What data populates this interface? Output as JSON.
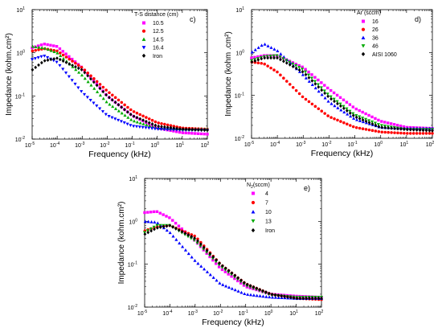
{
  "chart_data": [
    {
      "type": "scatter",
      "panel_label": "c)",
      "xlabel": "Frequency (kHz)",
      "ylabel": "Impedance (kohm.cm²)",
      "x_scale": "log",
      "y_scale": "log",
      "xlim": [
        1e-05,
        100
      ],
      "ylim": [
        0.01,
        10
      ],
      "x_ticks": [
        {
          "base": "10",
          "exp": "-5"
        },
        {
          "base": "10",
          "exp": "-4"
        },
        {
          "base": "10",
          "exp": "-3"
        },
        {
          "base": "10",
          "exp": "-2"
        },
        {
          "base": "10",
          "exp": "-1"
        },
        {
          "base": "10",
          "exp": "0"
        },
        {
          "base": "10",
          "exp": "1"
        },
        {
          "base": "10",
          "exp": "2"
        }
      ],
      "y_ticks": [
        {
          "base": "10",
          "exp": "-2"
        },
        {
          "base": "10",
          "exp": "-1"
        },
        {
          "base": "10",
          "exp": "0"
        },
        {
          "base": "10",
          "exp": "1"
        }
      ],
      "legend_title": "T-S distance (cm)",
      "legend_position": "top-right",
      "series": [
        {
          "name": "10.5",
          "color": "#ff00ff",
          "marker": "square",
          "points": [
            [
              1e-05,
              1.3
            ],
            [
              3e-05,
              1.6
            ],
            [
              0.0001,
              1.4
            ],
            [
              0.001,
              0.45
            ],
            [
              0.01,
              0.1
            ],
            [
              0.1,
              0.035
            ],
            [
              1,
              0.018
            ],
            [
              10,
              0.014
            ],
            [
              100,
              0.013
            ]
          ]
        },
        {
          "name": "12.5",
          "color": "#ff0000",
          "marker": "circle",
          "points": [
            [
              1e-05,
              1.1
            ],
            [
              3e-05,
              1.25
            ],
            [
              0.0001,
              1.1
            ],
            [
              0.001,
              0.45
            ],
            [
              0.01,
              0.13
            ],
            [
              0.1,
              0.045
            ],
            [
              1,
              0.024
            ],
            [
              10,
              0.018
            ],
            [
              100,
              0.017
            ]
          ]
        },
        {
          "name": "14.5",
          "color": "#00aa00",
          "marker": "triangle-up",
          "points": [
            [
              1e-05,
              1.4
            ],
            [
              3e-05,
              1.3
            ],
            [
              0.0001,
              1.0
            ],
            [
              0.001,
              0.3
            ],
            [
              0.01,
              0.07
            ],
            [
              0.1,
              0.027
            ],
            [
              1,
              0.018
            ],
            [
              10,
              0.017
            ],
            [
              100,
              0.017
            ]
          ]
        },
        {
          "name": "16.4",
          "color": "#0000ff",
          "marker": "triangle-down",
          "points": [
            [
              1e-05,
              0.7
            ],
            [
              3e-05,
              0.85
            ],
            [
              0.0001,
              0.6
            ],
            [
              0.001,
              0.12
            ],
            [
              0.01,
              0.035
            ],
            [
              0.1,
              0.02
            ],
            [
              1,
              0.017
            ],
            [
              10,
              0.016
            ],
            [
              100,
              0.016
            ]
          ]
        },
        {
          "name": "Iron",
          "color": "#000000",
          "marker": "diamond",
          "points": [
            [
              1e-05,
              0.4
            ],
            [
              3e-05,
              0.65
            ],
            [
              0.0001,
              0.75
            ],
            [
              0.001,
              0.4
            ],
            [
              0.01,
              0.1
            ],
            [
              0.1,
              0.035
            ],
            [
              1,
              0.02
            ],
            [
              10,
              0.017
            ],
            [
              100,
              0.016
            ]
          ]
        }
      ]
    },
    {
      "type": "scatter",
      "panel_label": "d)",
      "xlabel": "Frequency (kHz)",
      "ylabel": "Impedance (kohm .cm²)",
      "x_scale": "log",
      "y_scale": "log",
      "xlim": [
        1e-05,
        100
      ],
      "ylim": [
        0.01,
        10
      ],
      "x_ticks": [
        {
          "base": "10",
          "exp": "-5"
        },
        {
          "base": "10",
          "exp": "-4"
        },
        {
          "base": "10",
          "exp": "-3"
        },
        {
          "base": "10",
          "exp": "-2"
        },
        {
          "base": "10",
          "exp": "-1"
        },
        {
          "base": "10",
          "exp": "0"
        },
        {
          "base": "10",
          "exp": "1"
        },
        {
          "base": "10",
          "exp": "2"
        }
      ],
      "y_ticks": [
        {
          "base": "10",
          "exp": "-2"
        },
        {
          "base": "10",
          "exp": "-1"
        },
        {
          "base": "10",
          "exp": "0"
        },
        {
          "base": "10",
          "exp": "1"
        }
      ],
      "legend_title": "Ar (sccm)",
      "legend_position": "top-right",
      "series": [
        {
          "name": "16",
          "color": "#ff00ff",
          "marker": "square",
          "points": [
            [
              1e-05,
              0.75
            ],
            [
              3e-05,
              0.85
            ],
            [
              0.0001,
              0.85
            ],
            [
              0.001,
              0.45
            ],
            [
              0.01,
              0.14
            ],
            [
              0.1,
              0.05
            ],
            [
              1,
              0.025
            ],
            [
              10,
              0.018
            ],
            [
              100,
              0.017
            ]
          ]
        },
        {
          "name": "26",
          "color": "#ff0000",
          "marker": "circle",
          "points": [
            [
              1e-05,
              0.6
            ],
            [
              3e-05,
              0.55
            ],
            [
              0.0001,
              0.35
            ],
            [
              0.001,
              0.09
            ],
            [
              0.01,
              0.032
            ],
            [
              0.1,
              0.018
            ],
            [
              1,
              0.014
            ],
            [
              10,
              0.013
            ],
            [
              100,
              0.013
            ]
          ]
        },
        {
          "name": "36",
          "color": "#0000ff",
          "marker": "triangle-up",
          "points": [
            [
              1e-05,
              1.0
            ],
            [
              3e-05,
              1.6
            ],
            [
              0.0001,
              1.1
            ],
            [
              0.001,
              0.3
            ],
            [
              0.01,
              0.07
            ],
            [
              0.1,
              0.028
            ],
            [
              1,
              0.018
            ],
            [
              10,
              0.017
            ],
            [
              100,
              0.017
            ]
          ]
        },
        {
          "name": "46",
          "color": "#00aa00",
          "marker": "triangle-down",
          "points": [
            [
              1e-05,
              0.65
            ],
            [
              3e-05,
              0.8
            ],
            [
              0.0001,
              0.85
            ],
            [
              0.001,
              0.4
            ],
            [
              0.01,
              0.1
            ],
            [
              0.1,
              0.035
            ],
            [
              1,
              0.02
            ],
            [
              10,
              0.016
            ],
            [
              100,
              0.016
            ]
          ]
        },
        {
          "name": "AISI 1060",
          "color": "#000000",
          "marker": "diamond",
          "points": [
            [
              1e-05,
              0.6
            ],
            [
              3e-05,
              0.75
            ],
            [
              0.0001,
              0.75
            ],
            [
              0.001,
              0.35
            ],
            [
              0.01,
              0.09
            ],
            [
              0.1,
              0.032
            ],
            [
              1,
              0.018
            ],
            [
              10,
              0.016
            ],
            [
              100,
              0.015
            ]
          ]
        }
      ]
    },
    {
      "type": "scatter",
      "panel_label": "e)",
      "xlabel": "Frequency (kHz)",
      "ylabel": "Impedance (kohm.cm²)",
      "x_scale": "log",
      "y_scale": "log",
      "xlim": [
        1e-05,
        100
      ],
      "ylim": [
        0.01,
        10
      ],
      "x_ticks": [
        {
          "base": "10",
          "exp": "-5"
        },
        {
          "base": "10",
          "exp": "-4"
        },
        {
          "base": "10",
          "exp": "-3"
        },
        {
          "base": "10",
          "exp": "-2"
        },
        {
          "base": "10",
          "exp": "-1"
        },
        {
          "base": "10",
          "exp": "0"
        },
        {
          "base": "10",
          "exp": "1"
        },
        {
          "base": "10",
          "exp": "2"
        }
      ],
      "y_ticks": [
        {
          "base": "10",
          "exp": "-2"
        },
        {
          "base": "10",
          "exp": "-1"
        },
        {
          "base": "10",
          "exp": "0"
        },
        {
          "base": "10",
          "exp": "1"
        }
      ],
      "legend_title_main": "N",
      "legend_title_sub": "2",
      "legend_title_rest": "(sccm)",
      "legend_position": "top-right",
      "series": [
        {
          "name": "4",
          "color": "#ff00ff",
          "marker": "square",
          "points": [
            [
              1e-05,
              1.6
            ],
            [
              3e-05,
              1.7
            ],
            [
              0.0001,
              1.2
            ],
            [
              0.001,
              0.35
            ],
            [
              0.01,
              0.08
            ],
            [
              0.1,
              0.03
            ],
            [
              1,
              0.02
            ],
            [
              10,
              0.018
            ],
            [
              100,
              0.017
            ]
          ]
        },
        {
          "name": "7",
          "color": "#ff0000",
          "marker": "circle",
          "points": [
            [
              1e-05,
              0.6
            ],
            [
              3e-05,
              0.75
            ],
            [
              0.0001,
              0.8
            ],
            [
              0.001,
              0.45
            ],
            [
              0.01,
              0.1
            ],
            [
              0.1,
              0.035
            ],
            [
              1,
              0.02
            ],
            [
              10,
              0.016
            ],
            [
              100,
              0.015
            ]
          ]
        },
        {
          "name": "10",
          "color": "#0000ff",
          "marker": "triangle-up",
          "points": [
            [
              1e-05,
              1.0
            ],
            [
              3e-05,
              0.95
            ],
            [
              0.0001,
              0.55
            ],
            [
              0.001,
              0.12
            ],
            [
              0.01,
              0.035
            ],
            [
              0.1,
              0.02
            ],
            [
              1,
              0.017
            ],
            [
              10,
              0.016
            ],
            [
              100,
              0.016
            ]
          ]
        },
        {
          "name": "13",
          "color": "#00aa00",
          "marker": "triangle-down",
          "points": [
            [
              1e-05,
              0.55
            ],
            [
              3e-05,
              0.8
            ],
            [
              0.0001,
              0.8
            ],
            [
              0.001,
              0.35
            ],
            [
              0.01,
              0.09
            ],
            [
              0.1,
              0.032
            ],
            [
              1,
              0.019
            ],
            [
              10,
              0.017
            ],
            [
              100,
              0.017
            ]
          ]
        },
        {
          "name": "Iron",
          "color": "#000000",
          "marker": "diamond",
          "points": [
            [
              1e-05,
              0.5
            ],
            [
              3e-05,
              0.7
            ],
            [
              0.0001,
              0.8
            ],
            [
              0.001,
              0.4
            ],
            [
              0.01,
              0.1
            ],
            [
              0.1,
              0.035
            ],
            [
              1,
              0.02
            ],
            [
              10,
              0.016
            ],
            [
              100,
              0.016
            ]
          ]
        }
      ]
    }
  ]
}
